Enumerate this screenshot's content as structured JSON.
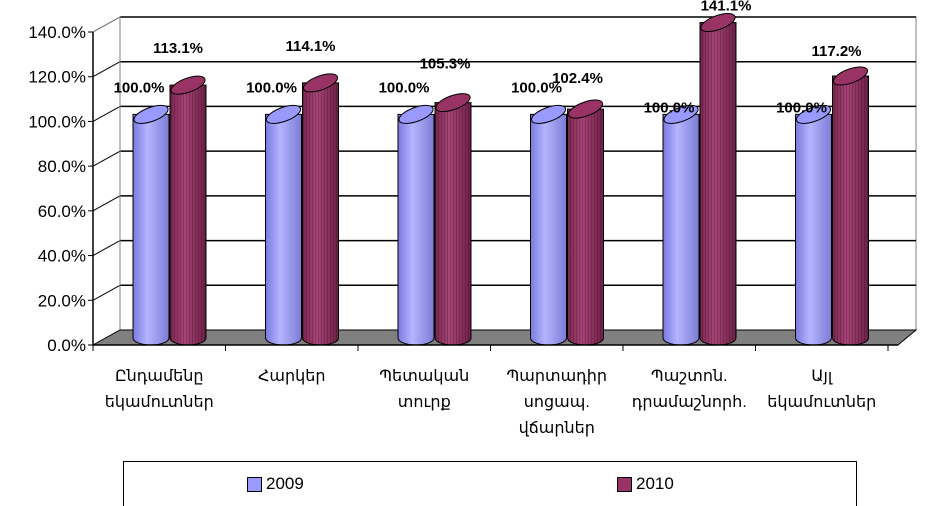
{
  "chart_data": {
    "type": "bar",
    "style": "3d-cylinder",
    "categories": [
      [
        "Ընդամենը",
        "եկամուտներ"
      ],
      [
        "Հարկեր"
      ],
      [
        "Պետական",
        "տուրք"
      ],
      [
        "Պարտադիր",
        "սոցապ.",
        "վճարներ"
      ],
      [
        "Պաշտոն.",
        "դրամաշնորհ."
      ],
      [
        "Այլ",
        "եկամուտներ"
      ]
    ],
    "series": [
      {
        "name": "2009",
        "color": "#9999ff",
        "values": [
          100.0,
          100.0,
          100.0,
          100.0,
          100.0,
          100.0
        ],
        "labels": [
          "100.0%",
          "100.0%",
          "100.0%",
          "100.0%",
          "100.0%",
          "100.0%"
        ]
      },
      {
        "name": "2010",
        "color": "#993366",
        "values": [
          113.1,
          114.1,
          105.3,
          102.4,
          141.1,
          117.2
        ],
        "labels": [
          "113.1%",
          "114.1%",
          "105.3%",
          "102.4%",
          "141.1%",
          "117.2%"
        ]
      }
    ],
    "ylim": [
      0,
      140
    ],
    "yticks": [
      "0.0%",
      "20.0%",
      "40.0%",
      "60.0%",
      "80.0%",
      "100.0%",
      "120.0%",
      "140.0%"
    ],
    "grid": true,
    "legend": "bottom"
  }
}
